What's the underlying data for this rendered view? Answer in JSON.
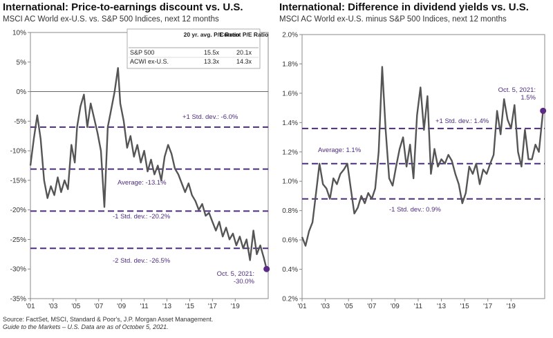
{
  "charts": [
    {
      "title": "International: Price-to-earnings discount vs. U.S.",
      "subtitle": "MSCI AC World ex-U.S. vs. S&P 500 Indices, next 12 months",
      "table": {
        "headers": [
          "",
          "20 yr. avg. P/E Ratio",
          "Current P/E Ratio"
        ],
        "rows": [
          [
            "S&P 500",
            "15.5x",
            "20.1x"
          ],
          [
            "ACWI ex-U.S.",
            "13.3x",
            "14.3x"
          ]
        ]
      },
      "annotations": {
        "plus1": "+1 Std. dev.: -6.0%",
        "avg": "Average: -13.1%",
        "minus1": "-1 Std. dev.: -20.2%",
        "minus2": "-2 Std. dev.: -26.5%",
        "end1": "Oct. 5, 2021:",
        "end2": "-30.0%"
      }
    },
    {
      "title": "International: Difference in dividend yields vs. U.S.",
      "subtitle": "MSCI AC World ex-U.S. minus S&P 500 Indices, next 12 months",
      "annotations": {
        "plus1": "+1 Std. dev.: 1.4%",
        "avg": "Average: 1.1%",
        "minus1": "-1 Std. dev.: 0.9%",
        "end1": "Oct. 5, 2021:",
        "end2": "1.5%"
      }
    }
  ],
  "chart_data": [
    {
      "type": "line",
      "x_ticks": [
        "'01",
        "'03",
        "'05",
        "'07",
        "'09",
        "'11",
        "'13",
        "'15",
        "'17",
        "'19"
      ],
      "y_ticks": [
        "10%",
        "5%",
        "0%",
        "-5%",
        "-10%",
        "-15%",
        "-20%",
        "-25%",
        "-30%",
        "-35%"
      ],
      "ylim": [
        -35,
        10
      ],
      "xlim": [
        2001,
        2021.9
      ],
      "reference_lines": [
        -6.0,
        -13.1,
        -20.2,
        -26.5
      ],
      "zero_line": 0,
      "series": [
        {
          "x": [
            2001.0,
            2001.3,
            2001.6,
            2001.9,
            2002.2,
            2002.5,
            2002.8,
            2003.1,
            2003.4,
            2003.7,
            2004.0,
            2004.3,
            2004.6,
            2004.9,
            2005.1,
            2005.4,
            2005.7,
            2006.0,
            2006.3,
            2006.6,
            2006.9,
            2007.2,
            2007.5,
            2007.8,
            2008.1,
            2008.4,
            2008.7,
            2008.9,
            2009.2,
            2009.5,
            2009.8,
            2010.1,
            2010.4,
            2010.7,
            2011.0,
            2011.3,
            2011.6,
            2011.9,
            2012.2,
            2012.5,
            2012.8,
            2013.1,
            2013.4,
            2013.7,
            2014.0,
            2014.3,
            2014.6,
            2014.9,
            2015.2,
            2015.5,
            2015.8,
            2016.1,
            2016.4,
            2016.7,
            2017.0,
            2017.3,
            2017.6,
            2017.9,
            2018.2,
            2018.5,
            2018.8,
            2019.1,
            2019.4,
            2019.7,
            2020.0,
            2020.3,
            2020.6,
            2020.9,
            2021.2,
            2021.5,
            2021.76
          ],
          "y": [
            -12.5,
            -8.0,
            -4.0,
            -8.0,
            -15.0,
            -18.0,
            -16.0,
            -17.5,
            -14.5,
            -17.0,
            -15.0,
            -16.5,
            -9.0,
            -12.0,
            -6.0,
            -2.5,
            -0.5,
            -6.0,
            -2.0,
            -4.5,
            -7.0,
            -10.0,
            -19.5,
            -6.0,
            -3.0,
            0.0,
            4.0,
            -2.0,
            -5.0,
            -9.5,
            -7.5,
            -11.0,
            -9.0,
            -12.0,
            -10.0,
            -13.5,
            -11.5,
            -14.0,
            -12.5,
            -15.0,
            -11.0,
            -9.0,
            -10.5,
            -13.0,
            -14.0,
            -15.5,
            -17.0,
            -15.5,
            -17.5,
            -18.5,
            -20.0,
            -19.0,
            -21.0,
            -20.5,
            -22.0,
            -23.5,
            -22.0,
            -24.5,
            -23.0,
            -25.0,
            -24.0,
            -26.0,
            -24.5,
            -26.5,
            -25.0,
            -28.5,
            -23.5,
            -27.5,
            -26.0,
            -28.0,
            -30.0
          ]
        }
      ]
    },
    {
      "type": "line",
      "x_ticks": [
        "'01",
        "'03",
        "'05",
        "'07",
        "'09",
        "'11",
        "'13",
        "'15",
        "'17",
        "'19"
      ],
      "y_ticks": [
        "2.0%",
        "1.8%",
        "1.6%",
        "1.4%",
        "1.2%",
        "1.0%",
        "0.8%",
        "0.6%",
        "0.4%",
        "0.2%"
      ],
      "ylim": [
        0.2,
        2.0
      ],
      "xlim": [
        2001,
        2021.9
      ],
      "reference_lines": [
        1.36,
        1.12,
        0.88
      ],
      "series": [
        {
          "x": [
            2001.0,
            2001.3,
            2001.6,
            2001.9,
            2002.2,
            2002.5,
            2002.8,
            2003.1,
            2003.4,
            2003.7,
            2004.0,
            2004.3,
            2004.6,
            2004.9,
            2005.2,
            2005.5,
            2005.8,
            2006.1,
            2006.4,
            2006.7,
            2007.0,
            2007.3,
            2007.6,
            2007.9,
            2008.2,
            2008.5,
            2008.8,
            2009.1,
            2009.4,
            2009.7,
            2010.0,
            2010.3,
            2010.6,
            2010.9,
            2011.2,
            2011.5,
            2011.8,
            2012.1,
            2012.4,
            2012.7,
            2013.0,
            2013.3,
            2013.6,
            2013.9,
            2014.2,
            2014.5,
            2014.8,
            2015.1,
            2015.4,
            2015.7,
            2016.0,
            2016.3,
            2016.6,
            2016.9,
            2017.2,
            2017.5,
            2017.8,
            2018.1,
            2018.4,
            2018.7,
            2019.0,
            2019.3,
            2019.6,
            2019.9,
            2020.2,
            2020.5,
            2020.8,
            2021.1,
            2021.4,
            2021.76
          ],
          "y": [
            0.62,
            0.56,
            0.66,
            0.72,
            0.92,
            1.12,
            0.98,
            0.95,
            0.88,
            1.02,
            0.98,
            1.05,
            1.08,
            1.12,
            0.95,
            0.78,
            0.82,
            0.9,
            0.85,
            0.92,
            0.88,
            0.95,
            1.2,
            1.78,
            1.35,
            1.02,
            0.97,
            1.1,
            1.22,
            1.3,
            1.1,
            1.25,
            1.02,
            1.45,
            1.64,
            1.35,
            1.58,
            1.05,
            1.22,
            1.1,
            1.15,
            1.12,
            1.18,
            1.14,
            1.05,
            0.98,
            0.85,
            0.92,
            1.1,
            1.05,
            1.12,
            0.98,
            1.08,
            1.05,
            1.12,
            1.18,
            1.48,
            1.32,
            1.56,
            1.42,
            1.36,
            1.52,
            1.2,
            1.1,
            1.35,
            1.15,
            1.15,
            1.25,
            1.2,
            1.48
          ]
        }
      ]
    }
  ],
  "footer": {
    "line1": "Source: FactSet, MSCI, Standard & Poor's, J.P. Morgan Asset Management.",
    "line2": "Guide to the Markets – U.S. Data are as of October 5, 2021."
  },
  "colors": {
    "line": "#555555",
    "ref": "#4b2c7f",
    "dot": "#5c2a86",
    "label": "#4b2c7f"
  }
}
